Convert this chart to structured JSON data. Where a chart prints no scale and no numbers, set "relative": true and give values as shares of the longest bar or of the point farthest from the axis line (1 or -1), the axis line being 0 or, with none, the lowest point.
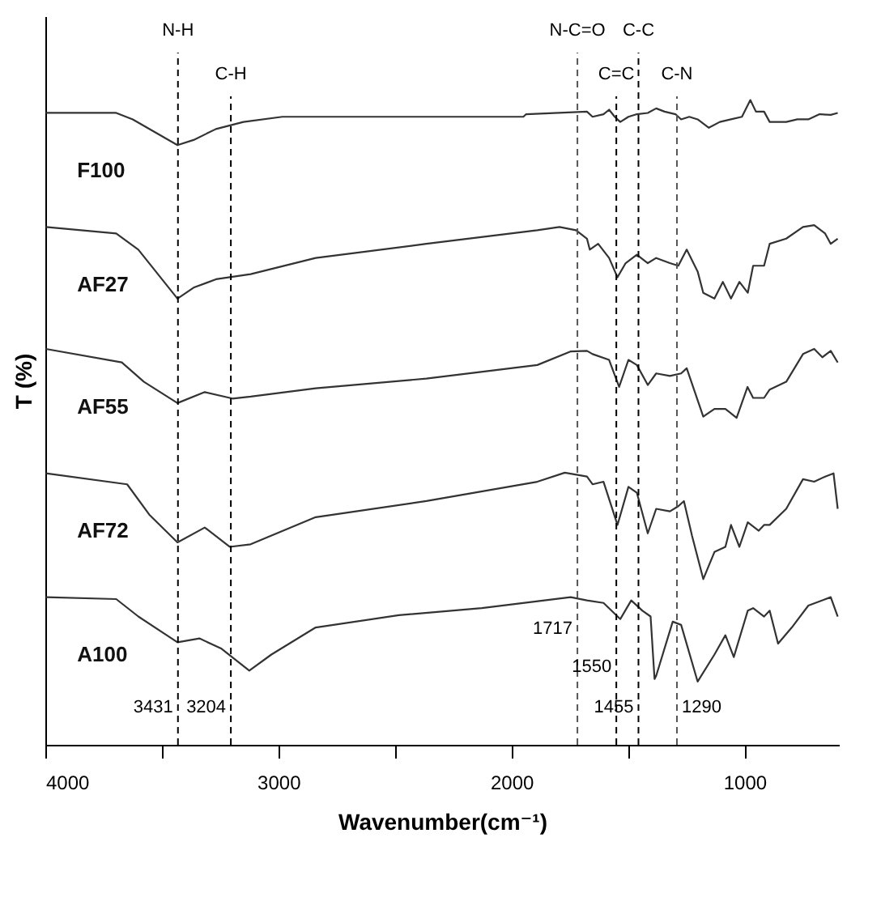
{
  "chart_data": {
    "type": "line",
    "relative": true,
    "xlabel": "Wavenumber(cm⁻¹)",
    "ylabel": "T (%)",
    "xlim": [
      4000,
      595
    ],
    "xticks": [
      4000,
      {
        "value": 3500,
        "label": null
      },
      3000,
      {
        "value": 2500,
        "label": null
      },
      2000,
      {
        "value": 1500,
        "label": null
      },
      1000
    ],
    "grid": false,
    "legend": false,
    "marker": "none",
    "line_style": "solid",
    "series": [
      {
        "name": "F100",
        "color": "#333333",
        "x": [
          3998,
          3696,
          3625,
          3433,
          3364,
          3268,
          3150,
          2983,
          2603,
          1949,
          1937,
          1676,
          1652,
          1605,
          1581,
          1557,
          1533,
          1498,
          1462,
          1415,
          1379,
          1343,
          1296,
          1272,
          1237,
          1201,
          1153,
          1106,
          1058,
          1011,
          975,
          951,
          916,
          892,
          821,
          773,
          726,
          678,
          630,
          600
        ],
        "values": [
          0.98,
          0.98,
          0.97,
          0.93,
          0.938,
          0.955,
          0.966,
          0.974,
          0.974,
          0.974,
          0.978,
          0.982,
          0.974,
          0.978,
          0.985,
          0.974,
          0.966,
          0.974,
          0.978,
          0.98,
          0.987,
          0.982,
          0.978,
          0.97,
          0.974,
          0.97,
          0.957,
          0.966,
          0.97,
          0.974,
          1.0,
          0.982,
          0.982,
          0.966,
          0.966,
          0.97,
          0.97,
          0.978,
          0.977,
          0.98
        ]
      },
      {
        "name": "AF27",
        "color": "#333333",
        "x": [
          3998,
          3696,
          3601,
          3433,
          3364,
          3268,
          3119,
          2840,
          2365,
          1889,
          1794,
          1723,
          1676,
          1664,
          1628,
          1581,
          1545,
          1510,
          1462,
          1415,
          1379,
          1320,
          1284,
          1248,
          1201,
          1177,
          1129,
          1093,
          1058,
          1022,
          986,
          963,
          916,
          892,
          821,
          749,
          701,
          654,
          630,
          600
        ],
        "values": [
          0.803,
          0.793,
          0.768,
          0.692,
          0.709,
          0.722,
          0.73,
          0.755,
          0.777,
          0.798,
          0.803,
          0.798,
          0.785,
          0.768,
          0.777,
          0.755,
          0.725,
          0.747,
          0.76,
          0.747,
          0.755,
          0.747,
          0.743,
          0.768,
          0.734,
          0.701,
          0.692,
          0.718,
          0.692,
          0.718,
          0.701,
          0.743,
          0.743,
          0.777,
          0.785,
          0.803,
          0.806,
          0.793,
          0.777,
          0.785
        ]
      },
      {
        "name": "AF55",
        "color": "#333333",
        "x": [
          3998,
          3672,
          3577,
          3433,
          3316,
          3197,
          3119,
          2840,
          2365,
          1889,
          1747,
          1676,
          1652,
          1581,
          1538,
          1498,
          1462,
          1415,
          1379,
          1320,
          1272,
          1248,
          1177,
          1129,
          1082,
          1034,
          987,
          963,
          916,
          892,
          821,
          749,
          701,
          666,
          630,
          600
        ],
        "values": [
          0.614,
          0.593,
          0.563,
          0.53,
          0.547,
          0.537,
          0.54,
          0.553,
          0.568,
          0.589,
          0.61,
          0.611,
          0.606,
          0.597,
          0.555,
          0.597,
          0.589,
          0.558,
          0.576,
          0.572,
          0.576,
          0.584,
          0.509,
          0.521,
          0.521,
          0.507,
          0.555,
          0.538,
          0.538,
          0.551,
          0.563,
          0.606,
          0.614,
          0.601,
          0.611,
          0.593
        ]
      },
      {
        "name": "AF72",
        "color": "#333333",
        "x": [
          3998,
          3649,
          3554,
          3433,
          3316,
          3209,
          3119,
          2840,
          2365,
          1889,
          1771,
          1676,
          1652,
          1605,
          1545,
          1498,
          1462,
          1415,
          1379,
          1320,
          1284,
          1260,
          1225,
          1177,
          1129,
          1082,
          1058,
          1022,
          986,
          939,
          916,
          892,
          821,
          749,
          701,
          654,
          618,
          600
        ],
        "values": [
          0.421,
          0.404,
          0.357,
          0.314,
          0.337,
          0.307,
          0.311,
          0.353,
          0.378,
          0.408,
          0.422,
          0.416,
          0.404,
          0.408,
          0.341,
          0.4,
          0.391,
          0.328,
          0.366,
          0.362,
          0.37,
          0.378,
          0.324,
          0.257,
          0.299,
          0.307,
          0.341,
          0.307,
          0.345,
          0.332,
          0.341,
          0.341,
          0.366,
          0.412,
          0.408,
          0.416,
          0.421,
          0.366
        ]
      },
      {
        "name": "A100",
        "color": "#333333",
        "x": [
          3998,
          3696,
          3601,
          3433,
          3339,
          3244,
          3125,
          3030,
          2840,
          2483,
          2127,
          1746,
          1676,
          1605,
          1533,
          1486,
          1438,
          1403,
          1386,
          1379,
          1308,
          1272,
          1201,
          1129,
          1082,
          1046,
          986,
          963,
          916,
          892,
          856,
          797,
          726,
          630,
          600
        ],
        "values": [
          0.229,
          0.226,
          0.199,
          0.159,
          0.165,
          0.149,
          0.115,
          0.14,
          0.182,
          0.201,
          0.212,
          0.229,
          0.224,
          0.22,
          0.195,
          0.224,
          0.208,
          0.199,
          0.102,
          0.107,
          0.191,
          0.186,
          0.098,
          0.14,
          0.17,
          0.136,
          0.208,
          0.212,
          0.199,
          0.208,
          0.157,
          0.182,
          0.216,
          0.229,
          0.199
        ]
      }
    ],
    "ref_lines": [
      {
        "axis": "x",
        "value": 3431,
        "label": "N-H",
        "line_style": "dashed",
        "color": "#000000"
      },
      {
        "axis": "x",
        "value": 3204,
        "label": "C-H",
        "line_style": "dashed",
        "color": "#000000"
      },
      {
        "axis": "x",
        "value": 1717,
        "label": "N-C=O",
        "line_style": "dashed",
        "color": "#555555"
      },
      {
        "axis": "x",
        "value": 1550,
        "label": "C=C",
        "line_style": "dashed",
        "color": "#000000"
      },
      {
        "axis": "x",
        "value": 1455,
        "label": "C-C",
        "line_style": "dashed",
        "color": "#000000"
      },
      {
        "axis": "x",
        "value": 1290,
        "label": "C-N",
        "line_style": "dashed",
        "color": "#555555"
      }
    ],
    "annotations": [
      {
        "text": "3431",
        "x": 3431,
        "y": 0.058
      },
      {
        "text": "3204",
        "x": 3204,
        "y": 0.058
      },
      {
        "text": "1717",
        "x": 1717,
        "y": 0.18
      },
      {
        "text": "1550",
        "x": 1550,
        "y": 0.12
      },
      {
        "text": "1455",
        "x": 1455,
        "y": 0.058
      },
      {
        "text": "1290",
        "x": 1290,
        "y": 0.058
      }
    ]
  }
}
